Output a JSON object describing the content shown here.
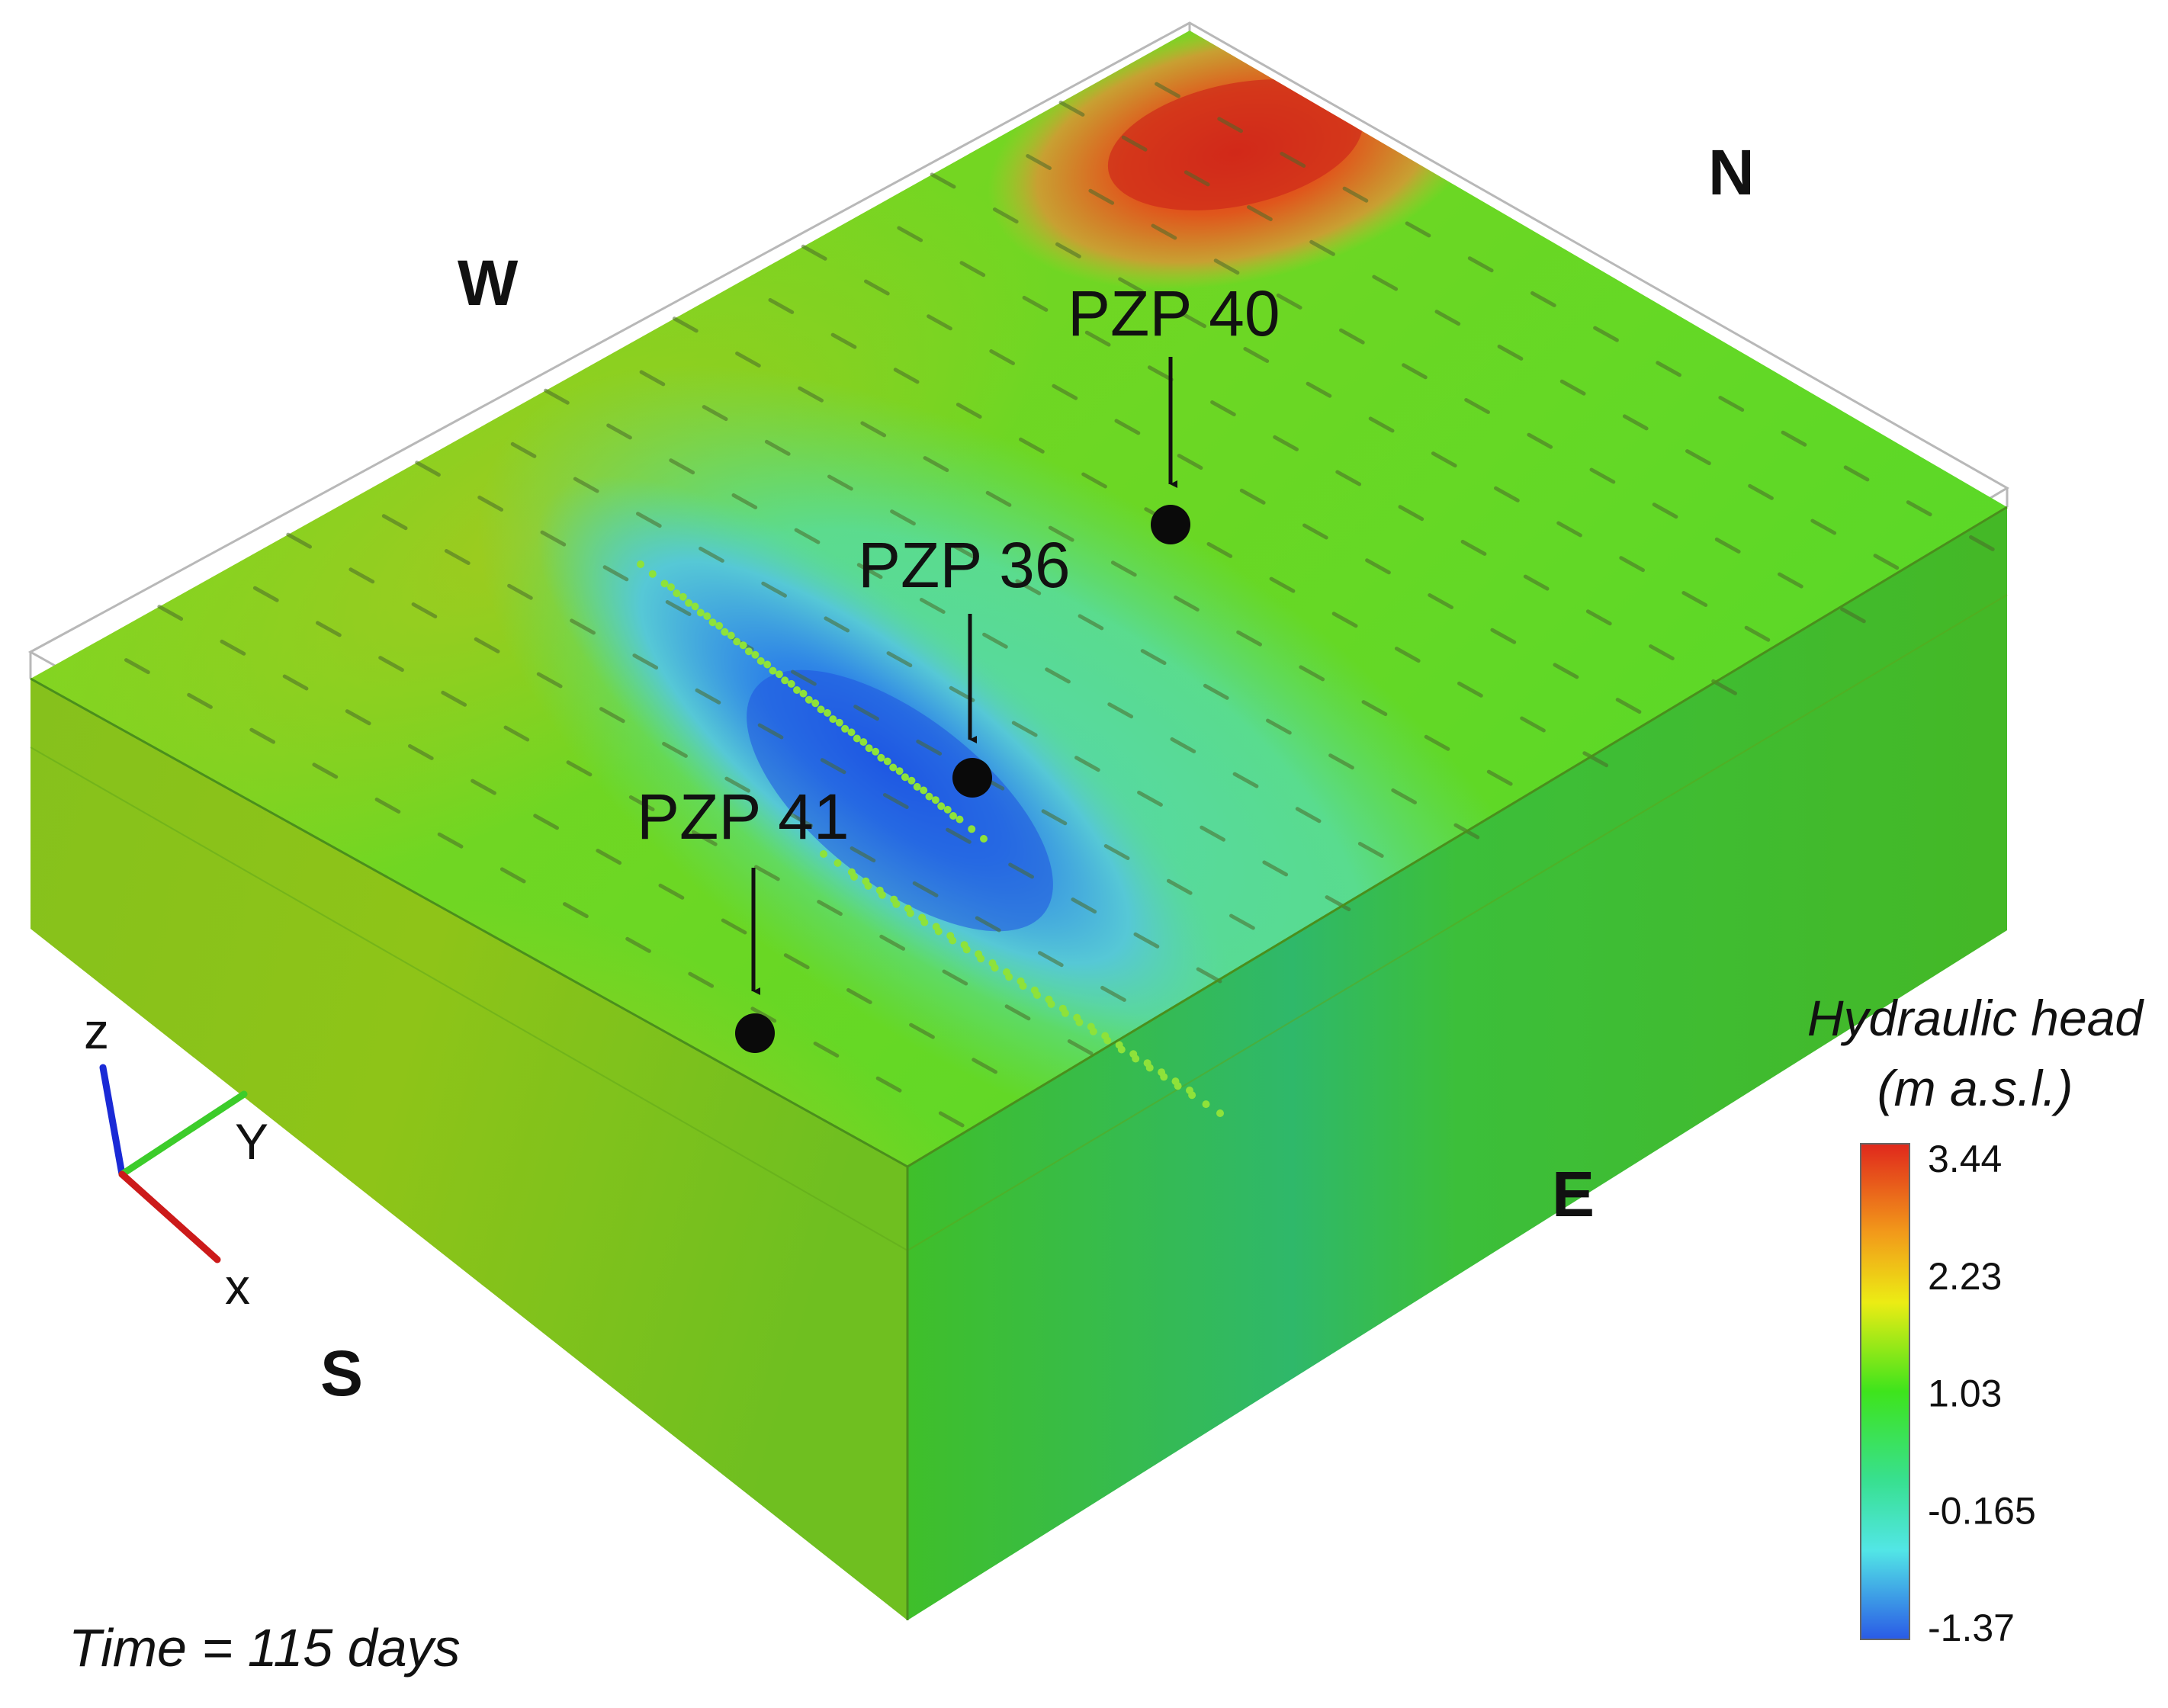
{
  "directions": {
    "west": "W",
    "north": "N",
    "east": "E",
    "south": "S"
  },
  "wells": [
    {
      "id": "pzp40",
      "label": "PZP 40"
    },
    {
      "id": "pzp36",
      "label": "PZP 36"
    },
    {
      "id": "pzp41",
      "label": "PZP 41"
    }
  ],
  "axes": {
    "z": "z",
    "y": "Y",
    "x": "x"
  },
  "legend": {
    "title_line1": "Hydraulic head",
    "title_line2": "(m a.s.l.)",
    "ticks": [
      "3.44",
      "2.23",
      "1.03",
      "-0.165",
      "-1.37"
    ],
    "colors": [
      "#e0281c",
      "#f2a51a",
      "#ecec14",
      "#3ee41c",
      "#38e090",
      "#52e6e6",
      "#2a5ae6"
    ]
  },
  "time_label": "Time = 115 days"
}
